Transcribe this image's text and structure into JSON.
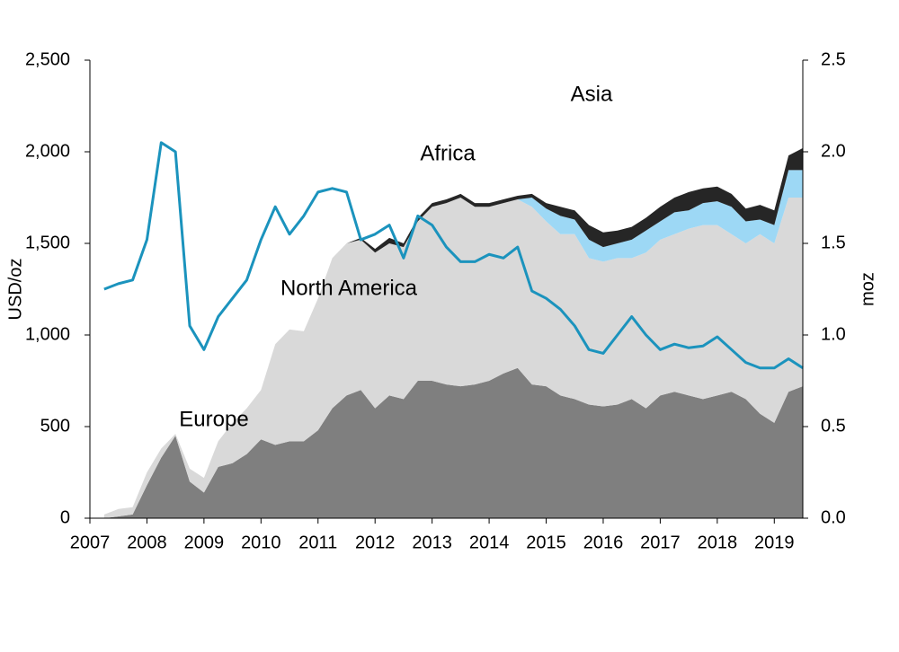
{
  "chart_data": {
    "type": "area",
    "y_label": "USD/oz",
    "y2_label": "moz",
    "x": [
      2007.25,
      2007.5,
      2007.75,
      2008,
      2008.25,
      2008.5,
      2008.75,
      2009,
      2009.25,
      2009.5,
      2009.75,
      2010,
      2010.25,
      2010.5,
      2010.75,
      2011,
      2011.25,
      2011.5,
      2011.75,
      2012,
      2012.25,
      2012.5,
      2012.75,
      2013,
      2013.25,
      2013.5,
      2013.75,
      2014,
      2014.25,
      2014.5,
      2014.75,
      2015,
      2015.25,
      2015.5,
      2015.75,
      2016,
      2016.25,
      2016.5,
      2016.75,
      2017,
      2017.25,
      2017.5,
      2017.75,
      2018,
      2018.25,
      2018.5,
      2018.75,
      2019,
      2019.25,
      2019.5
    ],
    "series": [
      {
        "name": "Europe",
        "color": "#7f7f7f",
        "axis": "y2",
        "values": [
          0,
          0.01,
          0.02,
          0.18,
          0.33,
          0.45,
          0.2,
          0.14,
          0.28,
          0.3,
          0.35,
          0.43,
          0.4,
          0.42,
          0.42,
          0.48,
          0.6,
          0.67,
          0.7,
          0.6,
          0.67,
          0.65,
          0.75,
          0.75,
          0.73,
          0.72,
          0.73,
          0.75,
          0.79,
          0.82,
          0.73,
          0.72,
          0.67,
          0.65,
          0.62,
          0.61,
          0.62,
          0.65,
          0.6,
          0.67,
          0.69,
          0.67,
          0.65,
          0.67,
          0.69,
          0.65,
          0.57,
          0.52,
          0.69,
          0.72
        ]
      },
      {
        "name": "North America",
        "color": "#d9d9d9",
        "axis": "y2",
        "values": [
          0.02,
          0.04,
          0.04,
          0.07,
          0.05,
          0.01,
          0.07,
          0.08,
          0.14,
          0.22,
          0.25,
          0.27,
          0.55,
          0.61,
          0.6,
          0.72,
          0.82,
          0.83,
          0.82,
          0.85,
          0.83,
          0.83,
          0.87,
          0.95,
          0.99,
          1.03,
          0.97,
          0.95,
          0.93,
          0.92,
          0.97,
          0.9,
          0.88,
          0.9,
          0.8,
          0.79,
          0.8,
          0.77,
          0.85,
          0.85,
          0.86,
          0.91,
          0.95,
          0.93,
          0.86,
          0.85,
          0.98,
          0.98,
          1.06,
          1.03
        ]
      },
      {
        "name": "Asia",
        "color": "#9dd8f5",
        "axis": "y2",
        "values": [
          0,
          0,
          0,
          0,
          0,
          0,
          0,
          0,
          0,
          0,
          0,
          0,
          0,
          0,
          0,
          0,
          0,
          0,
          0,
          0,
          0,
          0,
          0,
          0,
          0,
          0,
          0,
          0,
          0,
          0,
          0.05,
          0.07,
          0.1,
          0.08,
          0.1,
          0.08,
          0.08,
          0.1,
          0.12,
          0.1,
          0.12,
          0.1,
          0.12,
          0.13,
          0.15,
          0.12,
          0.08,
          0.1,
          0.15,
          0.15
        ]
      },
      {
        "name": "Africa",
        "color": "#262626",
        "axis": "y2",
        "values": [
          0,
          0,
          0,
          0,
          0,
          0,
          0,
          0,
          0,
          0,
          0,
          0,
          0,
          0,
          0,
          0,
          0,
          0,
          0.01,
          0.02,
          0.03,
          0.02,
          0.02,
          0.02,
          0.02,
          0.02,
          0.02,
          0.02,
          0.02,
          0.02,
          0.02,
          0.03,
          0.05,
          0.05,
          0.08,
          0.08,
          0.07,
          0.07,
          0.07,
          0.08,
          0.08,
          0.1,
          0.08,
          0.08,
          0.07,
          0.07,
          0.08,
          0.08,
          0.08,
          0.12
        ]
      },
      {
        "type": "line",
        "color": "#1b93bd",
        "values": [
          1250,
          1280,
          1300,
          1520,
          2050,
          2000,
          1050,
          920,
          1100,
          1200,
          1300,
          1520,
          1700,
          1550,
          1650,
          1780,
          1800,
          1780,
          1520,
          1550,
          1600,
          1420,
          1650,
          1600,
          1480,
          1400,
          1400,
          1440,
          1420,
          1480,
          1240,
          1200,
          1140,
          1050,
          920,
          900,
          1000,
          1100,
          1000,
          920,
          950,
          930,
          940,
          990,
          920,
          850,
          820,
          820,
          870,
          820
        ]
      }
    ],
    "xlim": [
      2007,
      2019.5
    ],
    "xticks": [
      2007,
      2008,
      2009,
      2010,
      2011,
      2012,
      2013,
      2014,
      2015,
      2016,
      2017,
      2018,
      2019
    ],
    "ylim": [
      0,
      2500
    ],
    "yticks": [
      0,
      500,
      {
        "value": 1000,
        "label": "1,000"
      },
      {
        "value": 1500,
        "label": "1,500"
      },
      {
        "value": 2000,
        "label": "2,000"
      },
      {
        "value": 2500,
        "label": "2,500"
      }
    ],
    "y2lim": [
      0,
      2.5
    ],
    "y2ticks": [
      {
        "value": 0,
        "label": "0.0"
      },
      0.5,
      {
        "value": 1,
        "label": "1.0"
      },
      1.5,
      {
        "value": 2,
        "label": "2.0"
      },
      2.5
    ],
    "grid": false
  }
}
